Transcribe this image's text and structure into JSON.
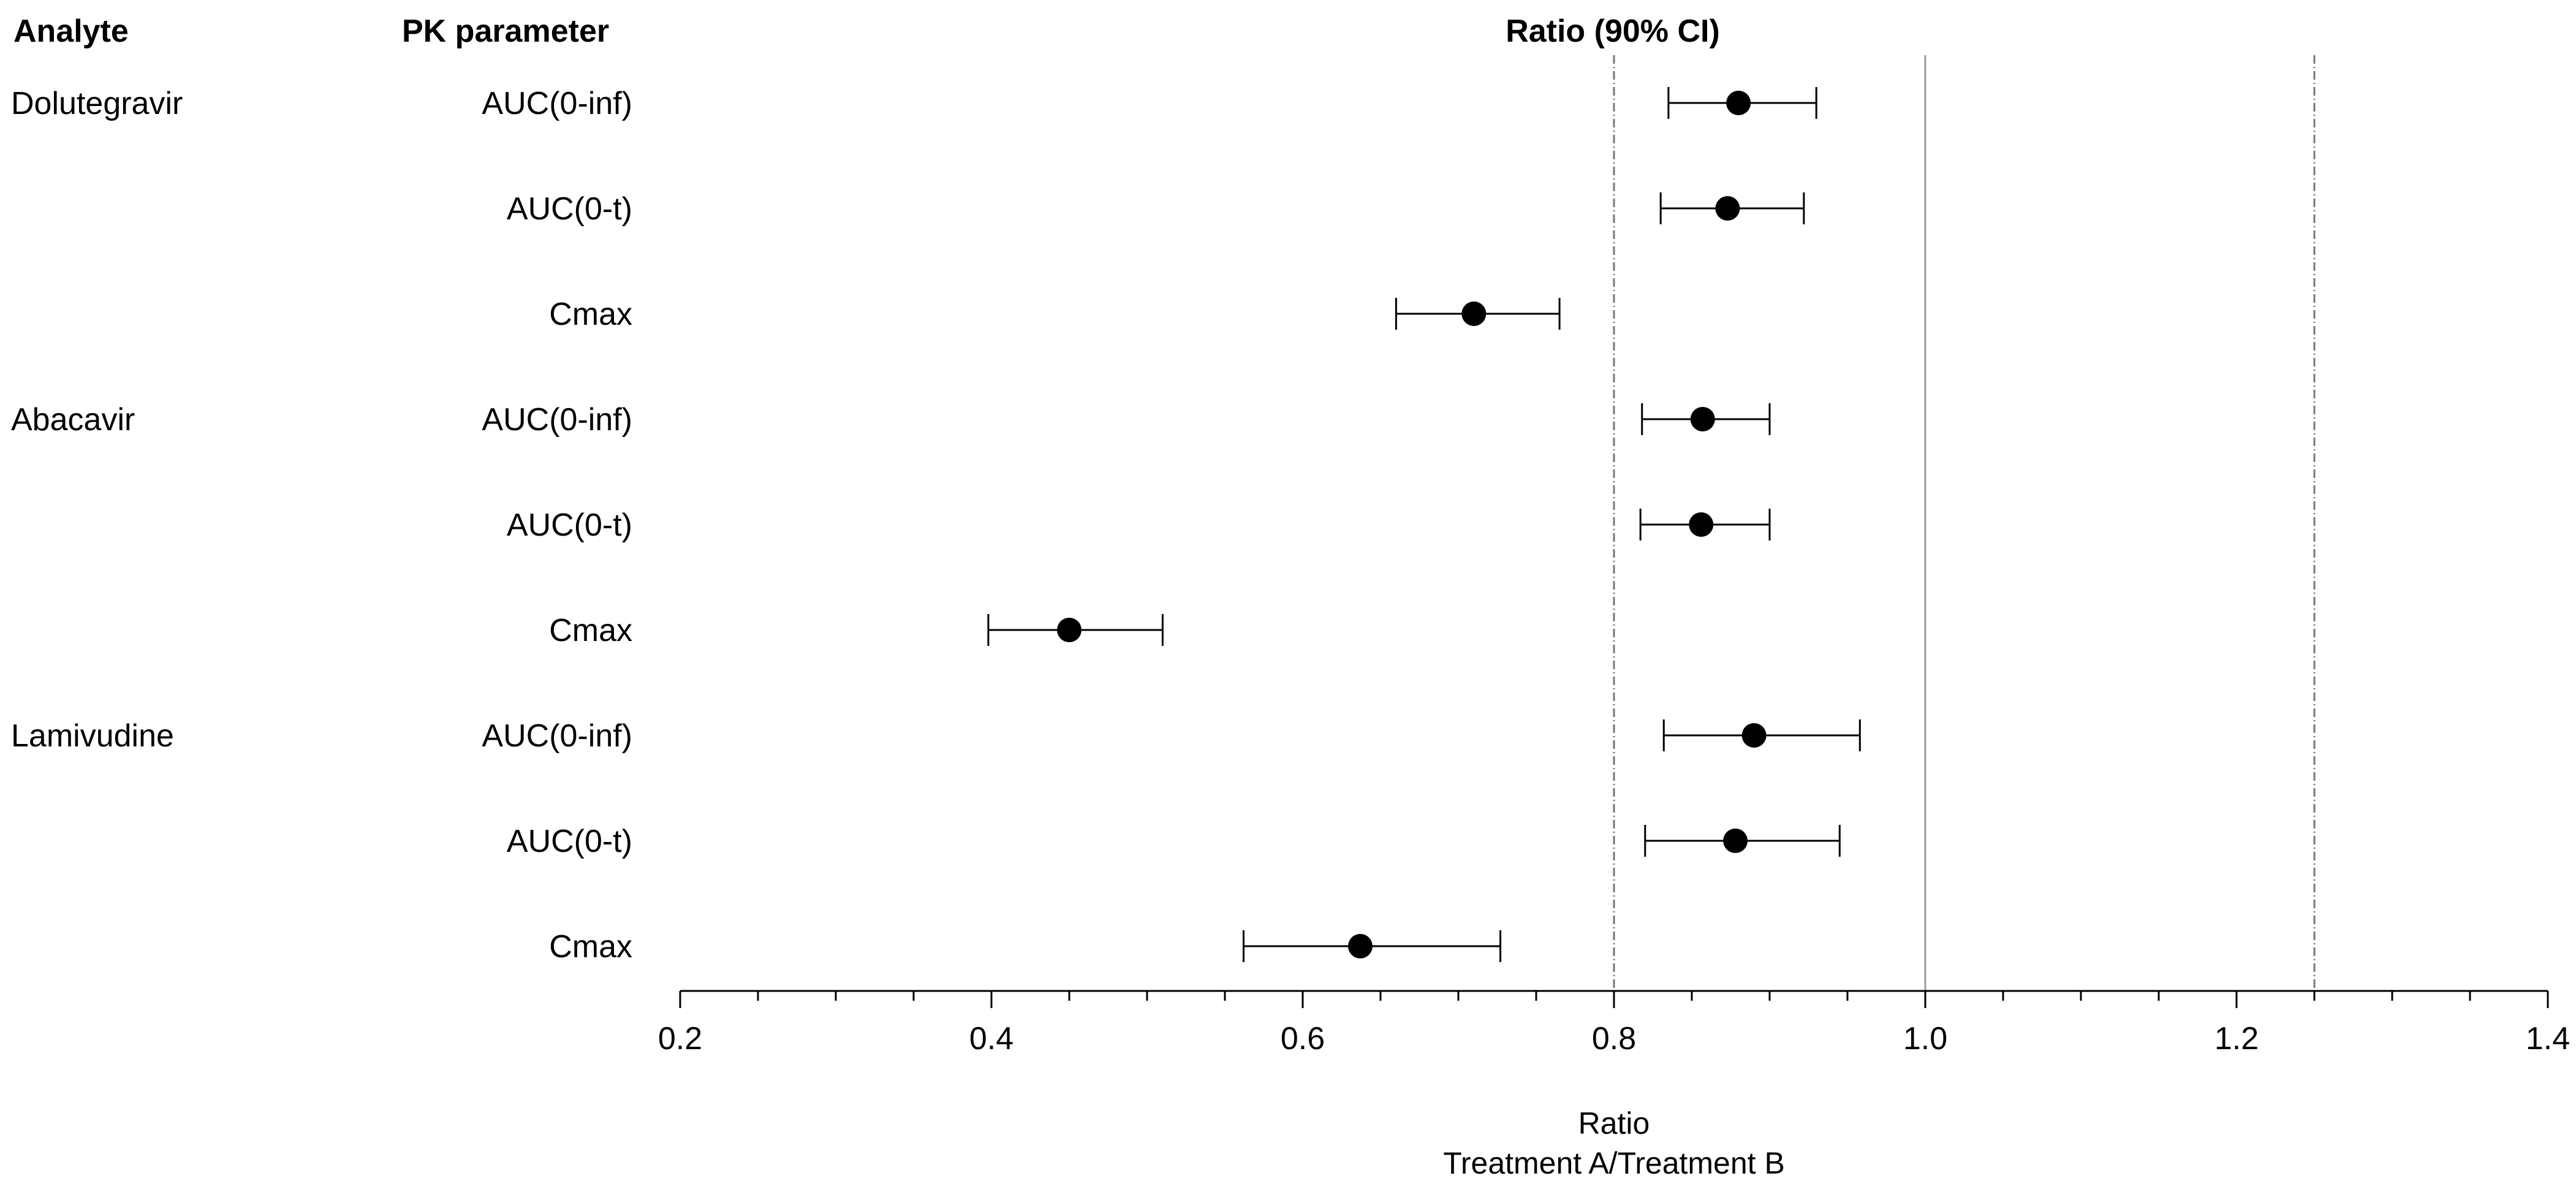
{
  "chart_data": {
    "type": "forest",
    "headers": {
      "analyte": "Analyte",
      "pk_parameter": "PK parameter",
      "ratio": "Ratio (90% CI)"
    },
    "rows": [
      {
        "analyte": "Dolutegravir",
        "parameter": "AUC(0-inf)",
        "ratio": 0.88,
        "ci_low": 0.835,
        "ci_high": 0.93
      },
      {
        "analyte": "",
        "parameter": "AUC(0-t)",
        "ratio": 0.873,
        "ci_low": 0.83,
        "ci_high": 0.922
      },
      {
        "analyte": "",
        "parameter": "Cmax",
        "ratio": 0.71,
        "ci_low": 0.66,
        "ci_high": 0.765
      },
      {
        "analyte": "Abacavir",
        "parameter": "AUC(0-inf)",
        "ratio": 0.857,
        "ci_low": 0.818,
        "ci_high": 0.9
      },
      {
        "analyte": "",
        "parameter": "AUC(0-t)",
        "ratio": 0.856,
        "ci_low": 0.817,
        "ci_high": 0.9
      },
      {
        "analyte": "",
        "parameter": "Cmax",
        "ratio": 0.45,
        "ci_low": 0.398,
        "ci_high": 0.51
      },
      {
        "analyte": "Lamivudine",
        "parameter": "AUC(0-inf)",
        "ratio": 0.89,
        "ci_low": 0.832,
        "ci_high": 0.958
      },
      {
        "analyte": "",
        "parameter": "AUC(0-t)",
        "ratio": 0.878,
        "ci_low": 0.82,
        "ci_high": 0.945
      },
      {
        "analyte": "",
        "parameter": "Cmax",
        "ratio": 0.637,
        "ci_low": 0.562,
        "ci_high": 0.727
      }
    ],
    "x_axis": {
      "range": [
        0.2,
        1.4
      ],
      "major_ticks": [
        0.2,
        0.4,
        0.6,
        0.8,
        1.0,
        1.2,
        1.4
      ],
      "tick_labels": [
        "0.2",
        "0.4",
        "0.6",
        "0.8",
        "1.0",
        "1.2",
        "1.4"
      ],
      "minor_step": 0.05,
      "label_line1": "Ratio",
      "label_line2": "Treatment A/Treatment B"
    },
    "reference_lines": [
      {
        "value": 0.8,
        "style": "dashed"
      },
      {
        "value": 1.0,
        "style": "solid"
      },
      {
        "value": 1.25,
        "style": "dashed"
      }
    ]
  }
}
